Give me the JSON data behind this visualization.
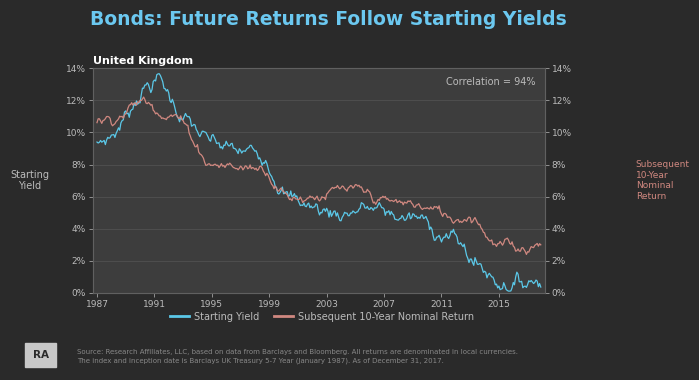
{
  "title": "Bonds: Future Returns Follow Starting Yields",
  "subtitle": "United Kingdom",
  "correlation_text": "Correlation = 94%",
  "ylabel_left": "Starting\nYield",
  "ylabel_right": "Subsequent\n10-Year\nNominal\nReturn",
  "source_text1": "Source: Research Affiliates, LLC, based on data from Barclays and Bloomberg. All returns are denominated in local currencies.",
  "source_text2": "The index and inception date is Barclays UK Treasury 5-7 Year (January 1987). As of December 31, 2017.",
  "legend_labels": [
    "Starting Yield",
    "Subsequent 10-Year Nominal Return"
  ],
  "line_color_blue": "#5BC8E8",
  "line_color_red": "#D08880",
  "background_color": "#2a2a2a",
  "plot_bg_color": "#3d3d3d",
  "title_color": "#6BC8F0",
  "text_color": "#bbbbbb",
  "grid_color": "#555555",
  "legend_bg": "#404040",
  "ylim": [
    0,
    0.14
  ],
  "yticks": [
    0.0,
    0.02,
    0.04,
    0.06,
    0.08,
    0.1,
    0.12,
    0.14
  ],
  "x_start_year": 1987,
  "x_end_year": 2018,
  "xtick_years": [
    1987,
    1991,
    1995,
    1999,
    2003,
    2007,
    2011,
    2015
  ]
}
